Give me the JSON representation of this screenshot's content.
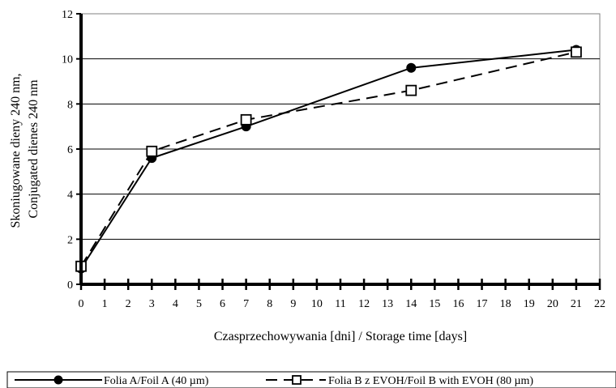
{
  "chart_data": {
    "type": "line",
    "title": "",
    "xlabel": "Czasprzechowywania [dni] / Storage time [days]",
    "ylabel_lines": [
      "Skoniugowane dieny 240 nm,",
      "Conjugated dienes 240 nm"
    ],
    "xlim": [
      0,
      22
    ],
    "ylim": [
      0,
      12
    ],
    "x_ticks": [
      0,
      1,
      2,
      3,
      4,
      5,
      6,
      7,
      8,
      9,
      10,
      11,
      12,
      13,
      14,
      15,
      16,
      17,
      18,
      19,
      20,
      21,
      22
    ],
    "y_ticks": [
      0,
      2,
      4,
      6,
      8,
      10,
      12
    ],
    "grid": "horizontal",
    "legend_position": "bottom",
    "series": [
      {
        "name": "Folia A/Foil A (40 µm)",
        "marker": "filled-circle",
        "line": "solid",
        "color": "#000000",
        "points": [
          [
            0,
            0.7
          ],
          [
            3,
            5.6
          ],
          [
            7,
            7.0
          ],
          [
            14,
            9.6
          ],
          [
            21,
            10.4
          ]
        ]
      },
      {
        "name": "Folia B z EVOH/Foil B with EVOH (80 µm)",
        "marker": "open-square",
        "line": "dashed",
        "color": "#000000",
        "points": [
          [
            0,
            0.8
          ],
          [
            3,
            5.9
          ],
          [
            7,
            7.3
          ],
          [
            14,
            8.6
          ],
          [
            21,
            10.3
          ]
        ]
      }
    ]
  }
}
